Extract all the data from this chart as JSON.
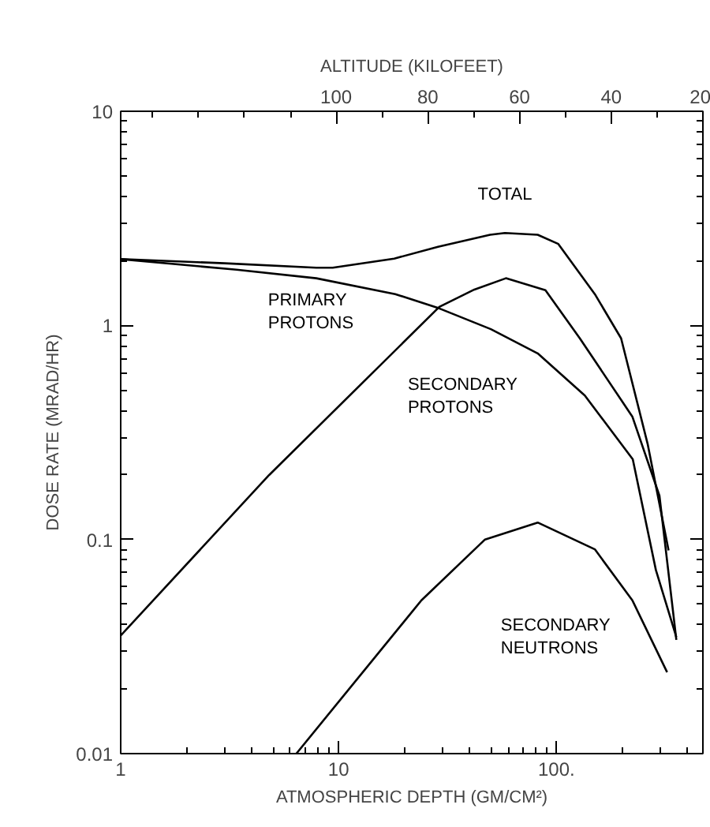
{
  "chart_data": {
    "type": "line",
    "xlabel": "ATMOSPHERIC DEPTH (GM/CM²)",
    "ylabel": "DOSE RATE (MRAD/HR)",
    "x2label": "ALTITUDE (KILOFEET)",
    "log": "xy",
    "xlim": [
      1,
      470
    ],
    "ylim": [
      0.01,
      10
    ],
    "xticks": [
      1,
      10,
      {
        "value": 100,
        "label": "100."
      }
    ],
    "yticks": [
      {
        "value": 0.01,
        "label": "0.01"
      },
      0.1,
      1,
      10
    ],
    "x2lim": [
      147,
      20
    ],
    "x2ticks": [
      100,
      80,
      60,
      40,
      20
    ],
    "grid": false,
    "marker": "none",
    "line_style": "solid",
    "series": [
      {
        "name": "TOTAL",
        "color": "#000000",
        "x": [
          1,
          3,
          7.9,
          9.4,
          18,
          28.6,
          49.6,
          58,
          82,
          102,
          150,
          198,
          262,
          327
        ],
        "values": [
          2.04,
          1.95,
          1.86,
          1.86,
          2.05,
          2.33,
          2.65,
          2.7,
          2.65,
          2.4,
          1.4,
          0.87,
          0.28,
          0.089
        ]
      },
      {
        "name": "PRIMARY PROTONS",
        "color": "#000000",
        "x": [
          1,
          3.4,
          7.9,
          18.2,
          29,
          50,
          82,
          135,
          224,
          286,
          355
        ],
        "values": [
          2.04,
          1.82,
          1.66,
          1.4,
          1.2,
          0.96,
          0.74,
          0.47,
          0.237,
          0.072,
          0.035
        ]
      },
      {
        "name": "SECONDARY PROTONS",
        "color": "#000000",
        "x": [
          1,
          4.8,
          29,
          42,
          58.6,
          89,
          128,
          223,
          297,
          355
        ],
        "values": [
          0.0356,
          0.2,
          1.22,
          1.47,
          1.66,
          1.46,
          0.87,
          0.375,
          0.16,
          0.034
        ]
      },
      {
        "name": "SECONDARY NEUTRONS",
        "color": "#000000",
        "x": [
          6.4,
          24,
          47,
          82,
          150,
          223,
          322
        ],
        "values": [
          0.01,
          0.052,
          0.1,
          0.12,
          0.09,
          0.052,
          0.024
        ]
      }
    ]
  }
}
